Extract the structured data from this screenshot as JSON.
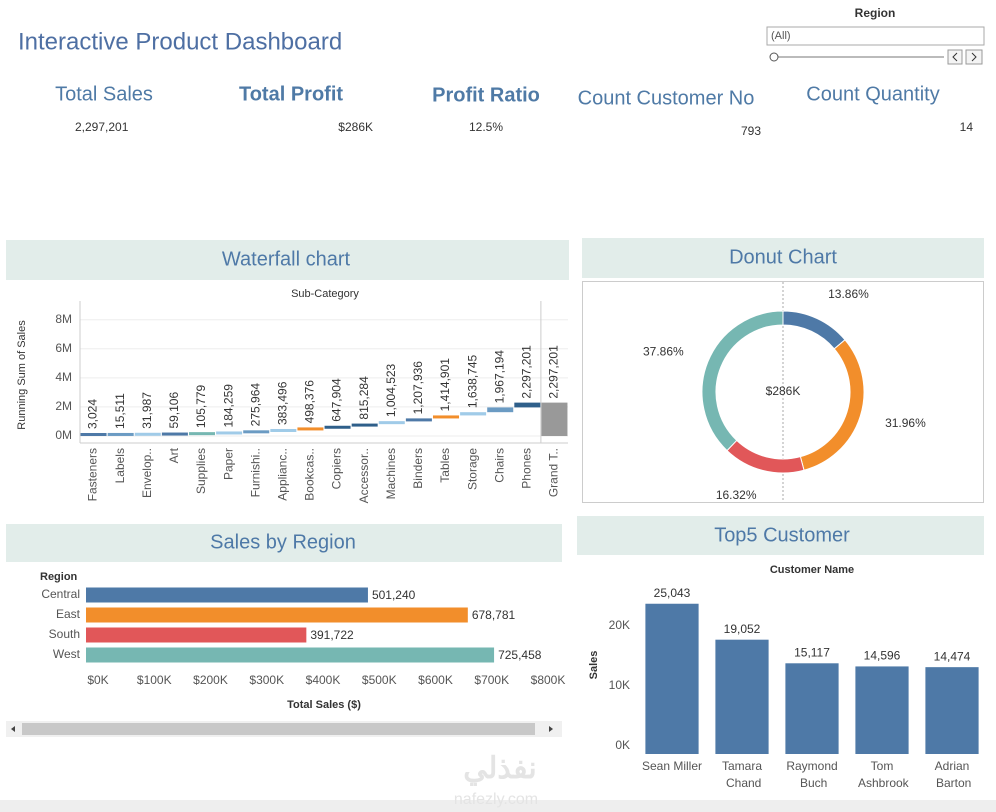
{
  "header": {
    "title": "Interactive Product Dashboard"
  },
  "filter": {
    "label": "Region",
    "value": "(All)"
  },
  "kpis": [
    {
      "label": "Total Sales",
      "value": "2,297,201"
    },
    {
      "label": "Total Profit",
      "value": "$286K"
    },
    {
      "label": "Profit Ratio",
      "value": "12.5%"
    },
    {
      "label": "Count Customer No",
      "value": "793"
    },
    {
      "label": "Count Quantity",
      "value": "14"
    }
  ],
  "chart_data": [
    {
      "type": "waterfall",
      "title": "Waterfall chart",
      "x_label": "Sub-Category",
      "y_label": "Running Sum of Sales",
      "categories": [
        "Fasteners",
        "Labels",
        "Envelop..",
        "Art",
        "Supplies",
        "Paper",
        "Furnishi..",
        "Applianc..",
        "Bookcas..",
        "Copiers",
        "Accessor..",
        "Machines",
        "Binders",
        "Tables",
        "Storage",
        "Chairs",
        "Phones",
        "Grand T.."
      ],
      "values": [
        3024,
        15511,
        31987,
        59106,
        105779,
        184259,
        275964,
        383496,
        498376,
        647904,
        815284,
        1004523,
        1207936,
        1414901,
        1638745,
        1967194,
        2297201,
        2297201
      ],
      "value_labels": [
        "3,024",
        "15,511",
        "31,987",
        "59,106",
        "105,779",
        "184,259",
        "275,964",
        "383,496",
        "498,376",
        "647,904",
        "815,284",
        "1,004,523",
        "1,207,936",
        "1,414,901",
        "1,638,745",
        "1,967,194",
        "2,297,201",
        "2,297,201"
      ],
      "colors": [
        "#4e79a7",
        "#6b9bc3",
        "#a0cbe8",
        "#4e79a7",
        "#76b7b2",
        "#a0cbe8",
        "#6b9bc3",
        "#a0cbe8",
        "#f28e2b",
        "#2f5f8a",
        "#2f5f8a",
        "#a0cbe8",
        "#4e79a7",
        "#f28e2b",
        "#a0cbe8",
        "#6b9bc3",
        "#2f5f8a",
        "#999999"
      ],
      "ylim": [
        0,
        8600000
      ],
      "yticks": [
        {
          "value": 0,
          "label": "0M"
        },
        {
          "value": 2000000,
          "label": "2M"
        },
        {
          "value": 4000000,
          "label": "4M"
        },
        {
          "value": 6000000,
          "label": "6M"
        },
        {
          "value": 8000000,
          "label": "8M"
        }
      ]
    },
    {
      "type": "pie",
      "donut": true,
      "title": "Donut Chart",
      "center_label": "$286K",
      "values": [
        13.86,
        31.96,
        16.32,
        37.86
      ],
      "value_labels": [
        "13.86%",
        "31.96%",
        "16.32%",
        "37.86%"
      ],
      "colors": [
        "#4e79a7",
        "#f28e2b",
        "#e15759",
        "#76b7b2"
      ]
    },
    {
      "type": "bar",
      "orientation": "horizontal",
      "title": "Sales by Region",
      "y_label": "Region",
      "x_label": "Total Sales ($)",
      "categories": [
        "Central",
        "East",
        "South",
        "West"
      ],
      "values": [
        501240,
        678781,
        391722,
        725458
      ],
      "value_labels": [
        "501,240",
        "678,781",
        "391,722",
        "725,458"
      ],
      "colors": [
        "#4e79a7",
        "#f28e2b",
        "#e15759",
        "#76b7b2"
      ],
      "xlim": [
        0,
        800000
      ],
      "xticks": [
        {
          "value": 0,
          "label": "$0K"
        },
        {
          "value": 100000,
          "label": "$100K"
        },
        {
          "value": 200000,
          "label": "$200K"
        },
        {
          "value": 300000,
          "label": "$300K"
        },
        {
          "value": 400000,
          "label": "$400K"
        },
        {
          "value": 500000,
          "label": "$500K"
        },
        {
          "value": 600000,
          "label": "$600K"
        },
        {
          "value": 700000,
          "label": "$700K"
        },
        {
          "value": 800000,
          "label": "$800K"
        }
      ]
    },
    {
      "type": "bar",
      "orientation": "vertical",
      "title": "Top5 Customer",
      "x_label": "Customer Name",
      "y_label": "Sales",
      "categories": [
        "Sean Miller",
        "Tamara Chand",
        "Raymond Buch",
        "Tom Ashbrook",
        "Adrian Barton"
      ],
      "values": [
        25043,
        19052,
        15117,
        14596,
        14474
      ],
      "value_labels": [
        "25,043",
        "19,052",
        "15,117",
        "14,596",
        "14,474"
      ],
      "color": "#4e79a7",
      "ylim": [
        0,
        28000
      ],
      "yticks": [
        {
          "value": 0,
          "label": "0K"
        },
        {
          "value": 10000,
          "label": "10K"
        },
        {
          "value": 20000,
          "label": "20K"
        }
      ]
    }
  ],
  "watermark": {
    "arabic": "نفذلي",
    "latin": "nafezly.com"
  }
}
